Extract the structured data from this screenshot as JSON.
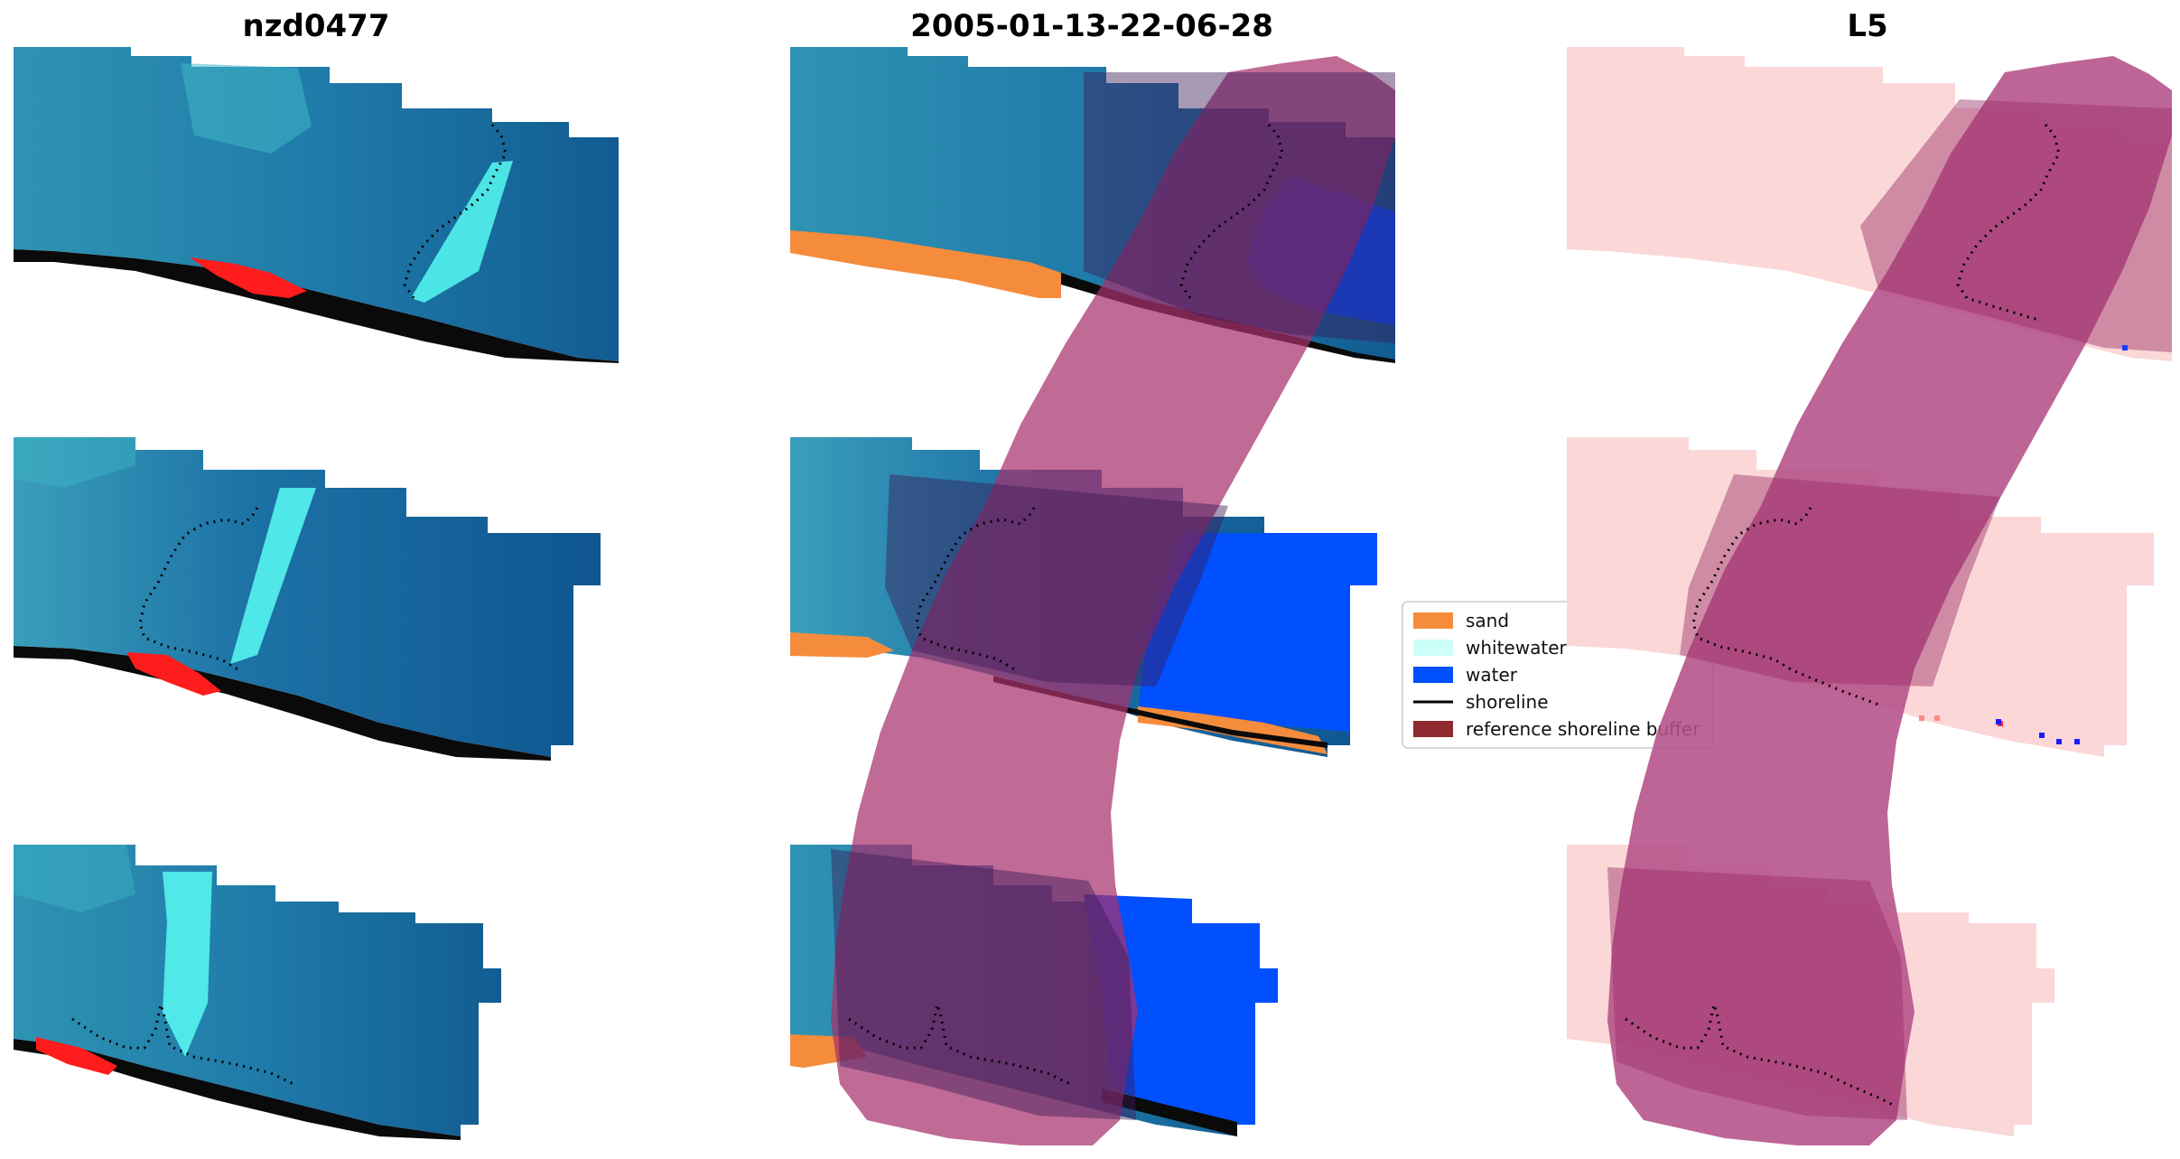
{
  "panels": [
    {
      "title": "nzd0477"
    },
    {
      "title": "2005-01-13-22-06-28"
    },
    {
      "title": "L5"
    }
  ],
  "legend": {
    "items": [
      {
        "label": "sand",
        "color": "#f58c3c",
        "kind": "patch"
      },
      {
        "label": "whitewater",
        "color": "#ccfffa",
        "kind": "patch"
      },
      {
        "label": "water",
        "color": "#0050ff",
        "kind": "patch"
      },
      {
        "label": "shoreline",
        "color": "#000000",
        "kind": "line"
      },
      {
        "label": "reference shoreline buffer",
        "color": "#8e2a2f",
        "kind": "patch"
      }
    ]
  },
  "colors": {
    "ocean": "#1a6fa0",
    "ocean_deep": "#115a8c",
    "lagoon": "#2a8eae",
    "surf": "#4ff0ea",
    "red_vegetation": "#ff1010",
    "sand": "#f58c3c",
    "water": "#0050ff",
    "buffer": "#a8316d",
    "buffer_overlay": "#b44f8a",
    "pink_mask": "#fad5d6",
    "shoreline": "#000000"
  }
}
